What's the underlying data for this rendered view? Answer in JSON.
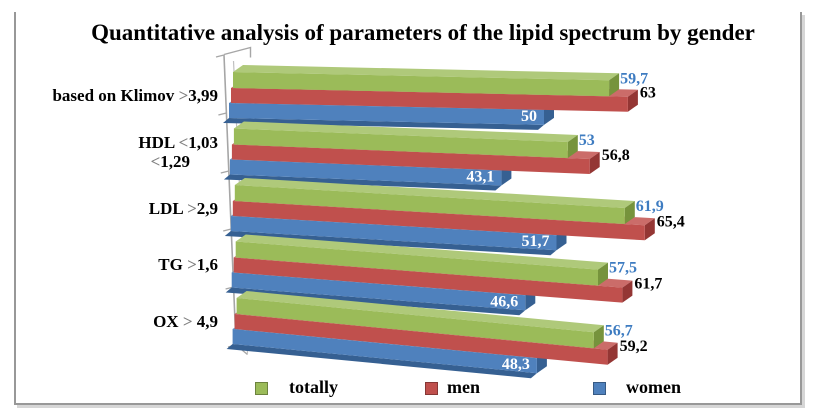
{
  "chart_data": {
    "type": "bar",
    "style": "3d-horizontal-clustered",
    "title": "Quantitative analysis of parameters of the lipid spectrum by gender",
    "categories": [
      "based on Klimov >3,99",
      "HDL <1,03 <1,29",
      "LDL >2,9",
      "TG >1,6",
      "OX > 4,9"
    ],
    "series": [
      {
        "name": "totally",
        "values": [
          59.7,
          53,
          61.9,
          57.5,
          56.7
        ],
        "labels": [
          "59,7",
          "53",
          "61,9",
          "57,5",
          "56,7"
        ],
        "color": "#9BBB59",
        "top_color": "#AFC97A",
        "side_color": "#76933C",
        "label_color": "#3E7CC1"
      },
      {
        "name": "men",
        "values": [
          63,
          56.8,
          65.4,
          61.7,
          59.2
        ],
        "labels": [
          "63",
          "56,8",
          "65,4",
          "61,7",
          "59,2"
        ],
        "color": "#C0504D",
        "top_color": "#CB6C69",
        "side_color": "#943634",
        "label_color": "#000000"
      },
      {
        "name": "women",
        "values": [
          50,
          43.1,
          51.7,
          46.6,
          48.3
        ],
        "labels": [
          "50",
          "43,1",
          "51,7",
          "46,6",
          "48,3"
        ],
        "color": "#4F81BD",
        "top_color": "#7099C8",
        "side_color": "#366092",
        "label_color": "#FFFFFF"
      }
    ],
    "legend": {
      "position": "bottom",
      "entries": [
        "totally",
        "men",
        "women"
      ]
    },
    "value_axis": {
      "visible": false,
      "gridlines": false
    },
    "category_axis": {
      "color": "#A6A6A6",
      "symbol_color": "#7F7F7F",
      "labels_rich": [
        {
          "lines": [
            [
              {
                "t": "based on Klimov "
              },
              {
                "t": ">",
                "sym": true
              },
              {
                "t": "3,99"
              }
            ]
          ]
        },
        {
          "lines": [
            [
              {
                "t": "HDL "
              },
              {
                "t": "<",
                "sym": true
              },
              {
                "t": "1,03"
              }
            ],
            [
              {
                "t": "<",
                "sym": true
              },
              {
                "t": "1,29"
              }
            ]
          ]
        },
        {
          "lines": [
            [
              {
                "t": "LDL "
              },
              {
                "t": ">",
                "sym": true
              },
              {
                "t": "2,9"
              }
            ]
          ]
        },
        {
          "lines": [
            [
              {
                "t": "TG "
              },
              {
                "t": ">",
                "sym": true
              },
              {
                "t": "1,6"
              }
            ]
          ]
        },
        {
          "lines": [
            [
              {
                "t": "OX "
              },
              {
                "t": ">",
                "sym": true
              },
              {
                "t": " 4,9"
              }
            ]
          ]
        }
      ]
    }
  },
  "frame": {
    "border_color": "#989898",
    "shadow_color": "#D6D6D6",
    "background": "#FFFFFF"
  }
}
